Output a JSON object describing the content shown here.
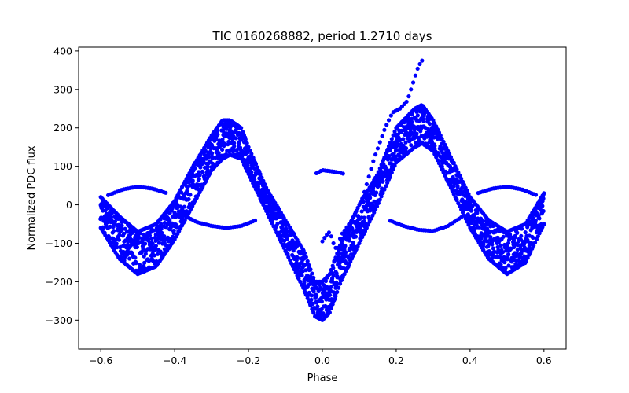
{
  "chart_data": {
    "type": "scatter",
    "title": "TIC 0160268882, period 1.2710 days",
    "xlabel": "Phase",
    "ylabel": "Normalized PDC flux",
    "xlim": [
      -0.66,
      0.66
    ],
    "ylim": [
      -375,
      410
    ],
    "xticks": [
      -0.6,
      -0.4,
      -0.2,
      0.0,
      0.2,
      0.4,
      0.6
    ],
    "xtick_labels": [
      "−0.6",
      "−0.4",
      "−0.2",
      "0.0",
      "0.2",
      "0.4",
      "0.6"
    ],
    "yticks": [
      -300,
      -200,
      -100,
      0,
      100,
      200,
      300,
      400
    ],
    "ytick_labels": [
      "−300",
      "−200",
      "−100",
      "0",
      "100",
      "200",
      "300",
      "400"
    ],
    "grid": false,
    "legend": "none",
    "marker_color": "#0000ff",
    "series": [
      {
        "style": "dense band of points (upper envelope)",
        "x": [
          -0.6,
          -0.55,
          -0.5,
          -0.45,
          -0.4,
          -0.35,
          -0.3,
          -0.27,
          -0.25,
          -0.22,
          -0.2,
          -0.15,
          -0.1,
          -0.05,
          -0.02,
          0.0,
          0.02,
          0.05,
          0.1,
          0.15,
          0.2,
          0.25,
          0.27,
          0.3,
          0.35,
          0.4,
          0.45,
          0.5,
          0.55,
          0.6
        ],
        "y": [
          20,
          -30,
          -70,
          -50,
          10,
          100,
          180,
          220,
          220,
          200,
          150,
          40,
          -40,
          -120,
          -200,
          -200,
          -180,
          -100,
          0,
          80,
          200,
          250,
          260,
          220,
          120,
          20,
          -40,
          -70,
          -50,
          30
        ]
      },
      {
        "style": "dense band of points (lower envelope)",
        "x": [
          -0.6,
          -0.55,
          -0.5,
          -0.45,
          -0.4,
          -0.35,
          -0.3,
          -0.27,
          -0.25,
          -0.22,
          -0.2,
          -0.15,
          -0.1,
          -0.05,
          -0.02,
          0.0,
          0.02,
          0.05,
          0.1,
          0.15,
          0.2,
          0.25,
          0.27,
          0.3,
          0.35,
          0.4,
          0.45,
          0.5,
          0.55,
          0.6
        ],
        "y": [
          -60,
          -140,
          -180,
          -160,
          -90,
          0,
          90,
          120,
          130,
          120,
          80,
          -20,
          -120,
          -220,
          -290,
          -300,
          -280,
          -200,
          -100,
          0,
          110,
          150,
          160,
          140,
          40,
          -60,
          -140,
          -180,
          -150,
          -50
        ]
      },
      {
        "style": "thin arc of points (upper)",
        "x": [
          -0.58,
          -0.54,
          -0.5,
          -0.46,
          -0.42,
          -0.02,
          0.0,
          0.04,
          0.06,
          0.42,
          0.46,
          0.5,
          0.54,
          0.58
        ],
        "y": [
          25,
          40,
          47,
          42,
          30,
          80,
          90,
          85,
          80,
          30,
          42,
          47,
          40,
          25
        ]
      },
      {
        "style": "thin arc of points (lower)",
        "x": [
          -0.38,
          -0.34,
          -0.3,
          -0.26,
          -0.22,
          -0.18,
          0.18,
          0.22,
          0.26,
          0.3,
          0.34,
          0.38
        ],
        "y": [
          -25,
          -45,
          -55,
          -60,
          -55,
          -40,
          -40,
          -55,
          -65,
          -68,
          -55,
          -30
        ]
      },
      {
        "style": "thin track of points",
        "x": [
          0.0,
          0.01,
          0.02,
          0.03,
          0.04,
          0.05,
          0.08,
          0.11,
          0.14,
          0.17,
          0.19,
          0.21,
          0.23,
          0.25,
          0.26,
          0.27
        ],
        "y": [
          -95,
          -80,
          -70,
          -100,
          -120,
          -80,
          -40,
          20,
          120,
          200,
          240,
          250,
          270,
          330,
          360,
          375
        ]
      }
    ]
  }
}
